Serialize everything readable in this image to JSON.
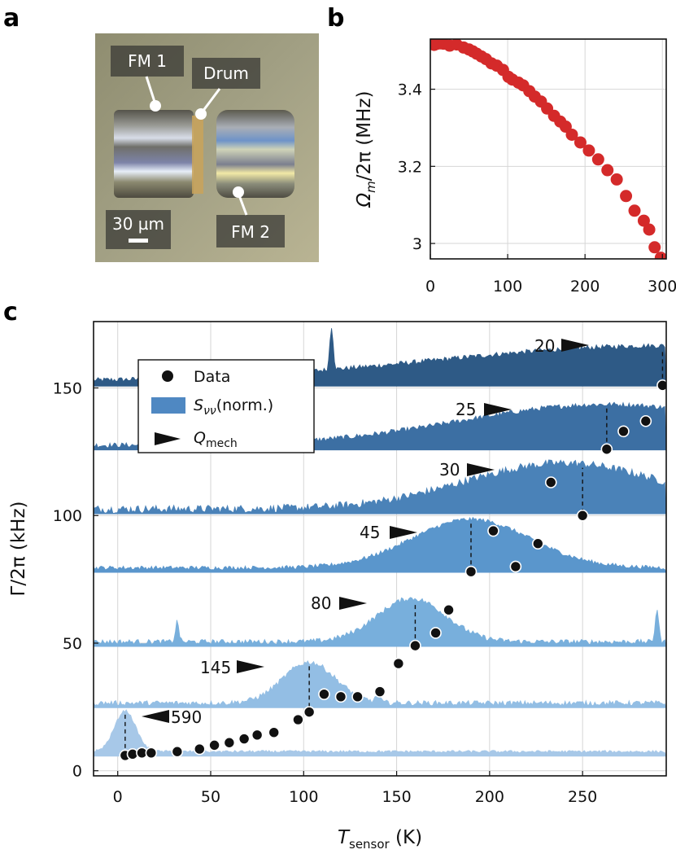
{
  "panels": {
    "a": "a",
    "b": "b",
    "c": "c"
  },
  "photo": {
    "labels": {
      "fm1": "FM 1",
      "drum": "Drum",
      "fm2": "FM 2"
    },
    "scalebar": "30 µm"
  },
  "chart_data": [
    {
      "panel": "b",
      "type": "scatter",
      "xlabel": "",
      "ylabel_main": "Ω",
      "ylabel_sub": "m",
      "ylabel_tail": "/2π (MHz)",
      "xlim": [
        0,
        305
      ],
      "ylim": [
        2.96,
        3.53
      ],
      "xticks": [
        0,
        100,
        200,
        300
      ],
      "yticks": [
        3.0,
        3.2,
        3.4
      ],
      "ytick_labels": [
        "3",
        "3.2",
        "3.4"
      ],
      "color": "#d42a2a",
      "points": [
        [
          5,
          3.515
        ],
        [
          9,
          3.518
        ],
        [
          13,
          3.519
        ],
        [
          17,
          3.518
        ],
        [
          25,
          3.513
        ],
        [
          34,
          3.516
        ],
        [
          43,
          3.508
        ],
        [
          50,
          3.503
        ],
        [
          55,
          3.498
        ],
        [
          60,
          3.492
        ],
        [
          66,
          3.485
        ],
        [
          72,
          3.478
        ],
        [
          79,
          3.467
        ],
        [
          86,
          3.461
        ],
        [
          94,
          3.45
        ],
        [
          101,
          3.432
        ],
        [
          106,
          3.425
        ],
        [
          114,
          3.417
        ],
        [
          120,
          3.41
        ],
        [
          128,
          3.395
        ],
        [
          135,
          3.381
        ],
        [
          143,
          3.368
        ],
        [
          151,
          3.35
        ],
        [
          160,
          3.331
        ],
        [
          168,
          3.316
        ],
        [
          175,
          3.303
        ],
        [
          183,
          3.282
        ],
        [
          194,
          3.262
        ],
        [
          205,
          3.241
        ],
        [
          217,
          3.218
        ],
        [
          229,
          3.19
        ],
        [
          241,
          3.166
        ],
        [
          253,
          3.123
        ],
        [
          264,
          3.085
        ],
        [
          276,
          3.059
        ],
        [
          283,
          3.036
        ],
        [
          290,
          2.99
        ],
        [
          298,
          2.963
        ]
      ]
    },
    {
      "panel": "c",
      "type": "scatter",
      "xlabel_main": "T",
      "xlabel_sub": "sensor",
      "xlabel_tail": " (K)",
      "ylabel": "Γ/2π (kHz)",
      "xlim": [
        -13,
        295
      ],
      "ylim": [
        -2,
        176
      ],
      "xticks": [
        0,
        50,
        100,
        150,
        200,
        250
      ],
      "yticks": [
        0,
        50,
        100,
        150
      ],
      "legend": {
        "data": "Data",
        "spectrum_main": "S",
        "spectrum_sub": "νν",
        "spectrum_tail": "(norm.)",
        "q_main": "Q",
        "q_sub": "mech"
      },
      "points": [
        [
          4,
          6
        ],
        [
          8,
          6.5
        ],
        [
          13,
          7
        ],
        [
          18,
          7
        ],
        [
          32,
          7.5
        ],
        [
          44,
          8.5
        ],
        [
          52,
          10
        ],
        [
          60,
          11
        ],
        [
          68,
          12.5
        ],
        [
          75,
          14
        ],
        [
          84,
          15
        ],
        [
          97,
          20
        ],
        [
          103,
          23
        ],
        [
          111,
          30
        ],
        [
          120,
          29
        ],
        [
          129,
          29
        ],
        [
          141,
          31
        ],
        [
          151,
          42
        ],
        [
          160,
          49
        ],
        [
          171,
          54
        ],
        [
          178,
          63
        ],
        [
          190,
          78
        ],
        [
          202,
          94
        ],
        [
          214,
          80
        ],
        [
          226,
          89
        ],
        [
          233,
          113
        ],
        [
          250,
          100
        ],
        [
          263,
          126
        ],
        [
          272,
          133
        ],
        [
          284,
          137
        ],
        [
          293,
          151
        ]
      ],
      "spectra": [
        {
          "q": "590",
          "marker_x": 4,
          "base": 6,
          "color": "#a7c8e8",
          "center": 4,
          "width": 8,
          "amp": 16,
          "noise": 0.5,
          "spikes": []
        },
        {
          "q": "145",
          "marker_x": 103,
          "base": 25,
          "color": "#93bee4",
          "center": 103,
          "width": 20,
          "amp": 16,
          "noise": 1.0,
          "spikes": [
            [
              140,
              5
            ]
          ]
        },
        {
          "q": "80",
          "marker_x": 160,
          "base": 49,
          "color": "#78afdc",
          "center": 158,
          "width": 26,
          "amp": 17,
          "noise": 1.0,
          "spikes": [
            [
              32,
              8
            ],
            [
              290,
              13
            ]
          ]
        },
        {
          "q": "45",
          "marker_x": 190,
          "base": 78,
          "color": "#5a96cc",
          "center": 190,
          "width": 45,
          "amp": 19,
          "noise": 0.8,
          "spikes": []
        },
        {
          "q": "30",
          "marker_x": 250,
          "base": 101,
          "color": "#4a82b8",
          "center": 240,
          "width": 75,
          "amp": 18,
          "noise": 1.6,
          "spikes": []
        },
        {
          "q": "25",
          "marker_x": 263,
          "base": 126,
          "color": "#3c6fa3",
          "center": 263,
          "width": 110,
          "amp": 16,
          "noise": 1.0,
          "spikes": []
        },
        {
          "q": "20",
          "marker_x": 293,
          "base": 151,
          "color": "#2e5a86",
          "center": 293,
          "width": 170,
          "amp": 14,
          "noise": 1.0,
          "spikes": [
            [
              115,
              17
            ]
          ]
        }
      ]
    }
  ]
}
